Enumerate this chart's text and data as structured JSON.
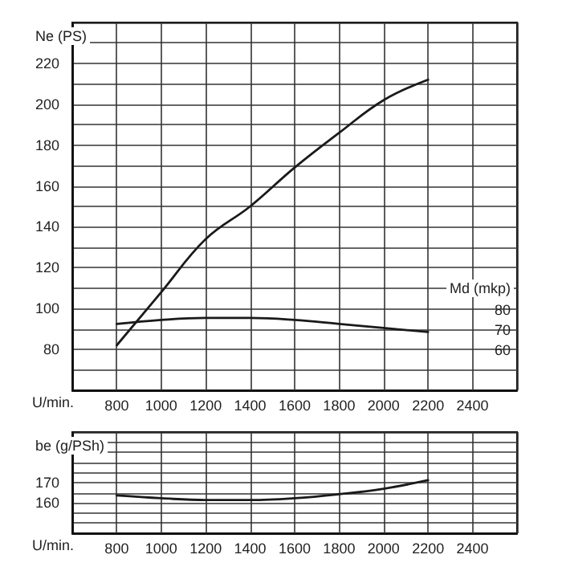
{
  "chart_data": [
    {
      "type": "line",
      "ylabel": "Ne (PS)",
      "y2label": "Md (mkp)",
      "xlabel": "U/min.",
      "x": [
        800,
        1000,
        1200,
        1400,
        1600,
        1800,
        2000,
        2200
      ],
      "series": [
        {
          "color": "#1a1a1a",
          "values": [
            82,
            108,
            134,
            150,
            169,
            186,
            202,
            212
          ]
        },
        {
          "color": "#1a1a1a",
          "axis": "y2",
          "values": [
            73,
            75,
            76,
            76,
            75,
            73,
            71,
            69
          ]
        }
      ],
      "xlim": [
        600,
        2600
      ],
      "xticks": [
        800,
        1000,
        1200,
        1400,
        1600,
        1800,
        2000,
        2200,
        2400
      ],
      "ylim": [
        60,
        240
      ],
      "yticks": [
        80,
        100,
        120,
        140,
        160,
        180,
        200,
        220
      ],
      "y2lim": [
        40,
        223
      ],
      "y2ticks": [
        60,
        70,
        80
      ],
      "grid": true,
      "marker": "none",
      "line_style": "solid"
    },
    {
      "type": "line",
      "ylabel": "be (g/PSh)",
      "xlabel": "U/min.",
      "x": [
        800,
        1000,
        1200,
        1400,
        1600,
        1800,
        2000,
        2200
      ],
      "series": [
        {
          "color": "#1a1a1a",
          "values": [
            163.7,
            162.3,
            161.4,
            161.4,
            162.3,
            164.3,
            167,
            171.2
          ]
        }
      ],
      "xlim": [
        600,
        2600
      ],
      "xticks": [
        800,
        1000,
        1200,
        1400,
        1600,
        1800,
        2000,
        2200,
        2400
      ],
      "ylim": [
        145,
        195
      ],
      "yticks": [
        160,
        170
      ],
      "grid": true,
      "marker": "none",
      "line_style": "solid"
    }
  ]
}
